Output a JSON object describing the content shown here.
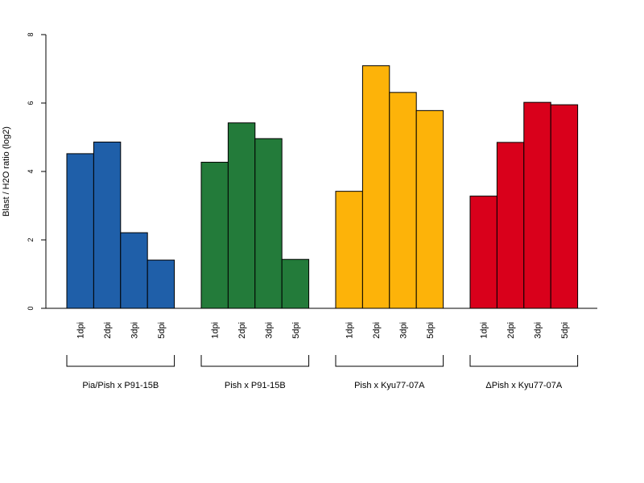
{
  "chart_data": {
    "type": "bar",
    "ylabel": "Blast / H2O ratio (log2)",
    "ylim": [
      0,
      8
    ],
    "yticks": [
      0,
      2,
      4,
      6,
      8
    ],
    "grid": false,
    "legend": "none",
    "groups": [
      {
        "name": "Pia/Pish x P91-15B",
        "color": "#1f5fa9",
        "categories": [
          "1dpi",
          "2dpi",
          "3dpi",
          "5dpi"
        ],
        "values": [
          4.52,
          4.86,
          2.21,
          1.41
        ]
      },
      {
        "name": "Pish x P91-15B",
        "color": "#237b3a",
        "categories": [
          "1dpi",
          "2dpi",
          "3dpi",
          "5dpi"
        ],
        "values": [
          4.27,
          5.42,
          4.96,
          1.43
        ]
      },
      {
        "name": "Pish x Kyu77-07A",
        "color": "#fdb309",
        "categories": [
          "1dpi",
          "2dpi",
          "3dpi",
          "5dpi"
        ],
        "values": [
          3.42,
          7.09,
          6.31,
          5.78
        ]
      },
      {
        "name": "ΔPish x Kyu77-07A",
        "color": "#d9001b",
        "categories": [
          "1dpi",
          "2dpi",
          "3dpi",
          "5dpi"
        ],
        "values": [
          3.28,
          4.85,
          6.02,
          5.95
        ]
      }
    ]
  }
}
